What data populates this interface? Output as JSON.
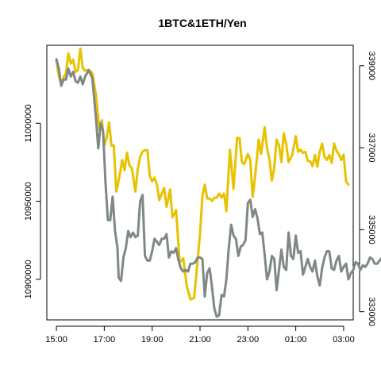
{
  "chart_data": {
    "type": "line",
    "title": "1BTC&1ETH/Yen",
    "xlabel": "",
    "ylabel": "",
    "x_tick_labels": [
      "15:00",
      "17:00",
      "19:00",
      "21:00",
      "23:00",
      "01:00",
      "03:00"
    ],
    "x_ticks_hours": [
      0,
      2,
      4,
      6,
      8,
      10,
      12
    ],
    "xlim_hours": [
      -0.4,
      12.4
    ],
    "left_axis": {
      "ticks": [
        10900000,
        10950000,
        11000000
      ],
      "tick_labels": [
        "10900000",
        "10950000",
        "11000000"
      ],
      "ylim": [
        10874000,
        11050000
      ]
    },
    "right_axis": {
      "ticks": [
        333000,
        335000,
        337000,
        339000
      ],
      "tick_labels": [
        "333000",
        "335000",
        "337000",
        "339000"
      ],
      "ylim": [
        332800,
        339500
      ]
    },
    "series": [
      {
        "axis": "right",
        "color": "#e8c200",
        "points": [
          [
            0.0,
            339120
          ],
          [
            0.1,
            338750
          ],
          [
            0.2,
            338550
          ],
          [
            0.3,
            338720
          ],
          [
            0.4,
            338820
          ],
          [
            0.5,
            339300
          ],
          [
            0.6,
            339050
          ],
          [
            0.7,
            339150
          ],
          [
            0.8,
            338850
          ],
          [
            0.9,
            338900
          ],
          [
            1.0,
            339420
          ],
          [
            1.1,
            338950
          ],
          [
            1.2,
            338880
          ],
          [
            1.35,
            338900
          ],
          [
            1.5,
            338820
          ],
          [
            1.65,
            338300
          ],
          [
            1.8,
            337430
          ],
          [
            1.9,
            337670
          ],
          [
            2.0,
            337050
          ],
          [
            2.1,
            337250
          ],
          [
            2.2,
            337620
          ],
          [
            2.3,
            337050
          ],
          [
            2.4,
            337060
          ],
          [
            2.5,
            335930
          ],
          [
            2.6,
            336200
          ],
          [
            2.75,
            336700
          ],
          [
            2.85,
            336450
          ],
          [
            2.95,
            336880
          ],
          [
            3.05,
            336570
          ],
          [
            3.15,
            336500
          ],
          [
            3.3,
            335930
          ],
          [
            3.4,
            336480
          ],
          [
            3.5,
            336780
          ],
          [
            3.6,
            336910
          ],
          [
            3.7,
            336940
          ],
          [
            3.8,
            336940
          ],
          [
            3.9,
            336310
          ],
          [
            4.0,
            336180
          ],
          [
            4.1,
            336270
          ],
          [
            4.2,
            336100
          ],
          [
            4.3,
            335720
          ],
          [
            4.4,
            335880
          ],
          [
            4.5,
            336020
          ],
          [
            4.6,
            335560
          ],
          [
            4.75,
            335980
          ],
          [
            4.85,
            335300
          ],
          [
            5.0,
            335480
          ],
          [
            5.15,
            334200
          ],
          [
            5.3,
            334300
          ],
          [
            5.45,
            333620
          ],
          [
            5.6,
            333300
          ],
          [
            5.75,
            333330
          ],
          [
            5.85,
            333930
          ],
          [
            6.0,
            334900
          ],
          [
            6.1,
            335820
          ],
          [
            6.2,
            336100
          ],
          [
            6.3,
            335760
          ],
          [
            6.4,
            335760
          ],
          [
            6.5,
            335700
          ],
          [
            6.6,
            335780
          ],
          [
            6.7,
            335780
          ],
          [
            6.8,
            335880
          ],
          [
            6.9,
            335780
          ],
          [
            7.0,
            335880
          ],
          [
            7.1,
            335450
          ],
          [
            7.25,
            336950
          ],
          [
            7.4,
            336000
          ],
          [
            7.55,
            337240
          ],
          [
            7.65,
            337230
          ],
          [
            7.75,
            336650
          ],
          [
            7.85,
            336600
          ],
          [
            8.0,
            336850
          ],
          [
            8.1,
            336700
          ],
          [
            8.2,
            335800
          ],
          [
            8.3,
            336300
          ],
          [
            8.45,
            337200
          ],
          [
            8.55,
            336850
          ],
          [
            8.7,
            337500
          ],
          [
            8.8,
            337000
          ],
          [
            8.9,
            336700
          ],
          [
            9.0,
            336200
          ],
          [
            9.1,
            336500
          ],
          [
            9.2,
            337200
          ],
          [
            9.3,
            337050
          ],
          [
            9.4,
            336650
          ],
          [
            9.5,
            337350
          ],
          [
            9.6,
            337080
          ],
          [
            9.7,
            336650
          ],
          [
            9.85,
            336820
          ],
          [
            10.0,
            337280
          ],
          [
            10.1,
            336900
          ],
          [
            10.2,
            336950
          ],
          [
            10.3,
            336870
          ],
          [
            10.4,
            336900
          ],
          [
            10.5,
            336680
          ],
          [
            10.6,
            336670
          ],
          [
            10.7,
            336550
          ],
          [
            10.8,
            336820
          ],
          [
            10.9,
            336540
          ],
          [
            11.0,
            336900
          ],
          [
            11.1,
            337100
          ],
          [
            11.2,
            336780
          ],
          [
            11.3,
            336700
          ],
          [
            11.4,
            336820
          ],
          [
            11.5,
            336630
          ],
          [
            11.6,
            337100
          ],
          [
            11.7,
            336930
          ],
          [
            11.8,
            336840
          ],
          [
            11.9,
            336700
          ],
          [
            12.0,
            336830
          ],
          [
            12.1,
            336180
          ],
          [
            12.2,
            336100
          ]
        ]
      },
      {
        "axis": "left",
        "color": "#7f8984",
        "points": [
          [
            0.0,
            11041000
          ],
          [
            0.1,
            11035000
          ],
          [
            0.2,
            11024000
          ],
          [
            0.3,
            11028000
          ],
          [
            0.4,
            11028000
          ],
          [
            0.5,
            11035000
          ],
          [
            0.6,
            11030000
          ],
          [
            0.7,
            11033000
          ],
          [
            0.8,
            11027000
          ],
          [
            0.9,
            11026000
          ],
          [
            1.0,
            11030000
          ],
          [
            1.1,
            11025000
          ],
          [
            1.2,
            11030000
          ],
          [
            1.35,
            11034000
          ],
          [
            1.5,
            11029000
          ],
          [
            1.65,
            11004000
          ],
          [
            1.75,
            10984000
          ],
          [
            1.85,
            11000000
          ],
          [
            1.95,
            10995000
          ],
          [
            2.05,
            10962000
          ],
          [
            2.15,
            10938000
          ],
          [
            2.25,
            10938000
          ],
          [
            2.35,
            10953000
          ],
          [
            2.45,
            10931000
          ],
          [
            2.55,
            10920000
          ],
          [
            2.6,
            10901000
          ],
          [
            2.7,
            10899000
          ],
          [
            2.8,
            10914000
          ],
          [
            2.9,
            10920000
          ],
          [
            3.0,
            10931000
          ],
          [
            3.1,
            10927000
          ],
          [
            3.2,
            10930000
          ],
          [
            3.3,
            10927000
          ],
          [
            3.4,
            10928000
          ],
          [
            3.5,
            10950000
          ],
          [
            3.6,
            10954000
          ],
          [
            3.7,
            10915000
          ],
          [
            3.8,
            10912000
          ],
          [
            3.9,
            10912000
          ],
          [
            4.0,
            10918000
          ],
          [
            4.1,
            10926000
          ],
          [
            4.2,
            10924000
          ],
          [
            4.3,
            10922000
          ],
          [
            4.4,
            10926000
          ],
          [
            4.5,
            10926000
          ],
          [
            4.6,
            10929000
          ],
          [
            4.7,
            10914000
          ],
          [
            4.8,
            10918000
          ],
          [
            4.9,
            10917000
          ],
          [
            5.0,
            10920000
          ],
          [
            5.1,
            10912000
          ],
          [
            5.2,
            10907000
          ],
          [
            5.3,
            10905000
          ],
          [
            5.4,
            10906000
          ],
          [
            5.5,
            10905000
          ],
          [
            5.6,
            10910000
          ],
          [
            5.7,
            10910000
          ],
          [
            5.8,
            10911000
          ],
          [
            5.9,
            10914000
          ],
          [
            6.0,
            10914000
          ],
          [
            6.1,
            10913000
          ],
          [
            6.2,
            10889000
          ],
          [
            6.3,
            10904000
          ],
          [
            6.4,
            10907000
          ],
          [
            6.5,
            10895000
          ],
          [
            6.6,
            10881000
          ],
          [
            6.7,
            10876000
          ],
          [
            6.8,
            10877000
          ],
          [
            6.9,
            10890000
          ],
          [
            7.0,
            10889000
          ],
          [
            7.1,
            10900000
          ],
          [
            7.2,
            10920000
          ],
          [
            7.3,
            10935000
          ],
          [
            7.4,
            10928000
          ],
          [
            7.5,
            10926000
          ],
          [
            7.6,
            10915000
          ],
          [
            7.7,
            10921000
          ],
          [
            7.8,
            10922000
          ],
          [
            7.9,
            10925000
          ],
          [
            8.0,
            10949000
          ],
          [
            8.1,
            10951000
          ],
          [
            8.2,
            10940000
          ],
          [
            8.3,
            10945000
          ],
          [
            8.4,
            10939000
          ],
          [
            8.5,
            10929000
          ],
          [
            8.6,
            10930000
          ],
          [
            8.7,
            10916000
          ],
          [
            8.8,
            10900000
          ],
          [
            8.9,
            10905000
          ],
          [
            9.0,
            10915000
          ],
          [
            9.1,
            10913000
          ],
          [
            9.2,
            10893000
          ],
          [
            9.3,
            10906000
          ],
          [
            9.4,
            10919000
          ],
          [
            9.5,
            10908000
          ],
          [
            9.6,
            10906000
          ],
          [
            9.7,
            10930000
          ],
          [
            9.8,
            10915000
          ],
          [
            9.9,
            10913000
          ],
          [
            10.0,
            10928000
          ],
          [
            10.1,
            10917000
          ],
          [
            10.2,
            10918000
          ],
          [
            10.3,
            10903000
          ],
          [
            10.4,
            10908000
          ],
          [
            10.5,
            10913000
          ],
          [
            10.6,
            10908000
          ],
          [
            10.7,
            10905000
          ],
          [
            10.8,
            10912000
          ],
          [
            10.9,
            10902000
          ],
          [
            11.0,
            10896000
          ],
          [
            11.1,
            10907000
          ],
          [
            11.2,
            10914000
          ],
          [
            11.3,
            10918000
          ],
          [
            11.4,
            10918000
          ],
          [
            11.5,
            10907000
          ],
          [
            11.6,
            10906000
          ],
          [
            11.7,
            10912000
          ],
          [
            11.8,
            10915000
          ],
          [
            11.9,
            10905000
          ],
          [
            12.0,
            10908000
          ],
          [
            12.1,
            10910000
          ],
          [
            12.2,
            10900000
          ],
          [
            12.3,
            10904000
          ],
          [
            12.4,
            10906000
          ],
          [
            12.5,
            10911000
          ],
          [
            12.6,
            10910000
          ],
          [
            12.7,
            10906000
          ],
          [
            12.8,
            10909000
          ],
          [
            12.9,
            10908000
          ],
          [
            13.0,
            10910000
          ],
          [
            13.1,
            10914000
          ],
          [
            13.2,
            10913000
          ],
          [
            13.3,
            10910000
          ],
          [
            13.4,
            10910000
          ],
          [
            13.5,
            10912000
          ],
          [
            13.6,
            10914000
          ],
          [
            13.7,
            10908000
          ],
          [
            13.8,
            10909000
          ],
          [
            13.9,
            10910000
          ],
          [
            14.0,
            10902000
          ]
        ]
      }
    ]
  }
}
